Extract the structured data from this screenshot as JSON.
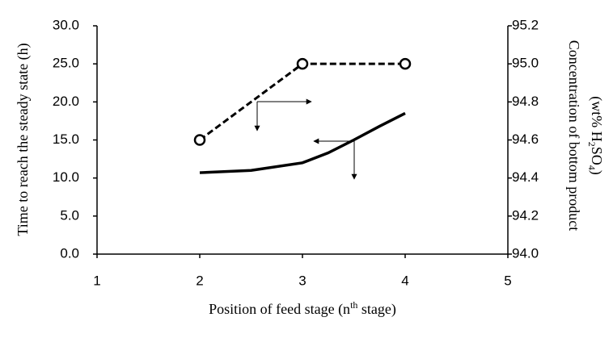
{
  "chart_data": {
    "type": "line",
    "xlabel": [
      "Position of feed stage (n",
      "th",
      " stage)"
    ],
    "ylabel": "Time to reach the steady state (h)",
    "y2label": [
      "Concentration of bottom product",
      "(wt% H",
      "2",
      "SO",
      "4",
      ")"
    ],
    "xlim": [
      1,
      5
    ],
    "xticks": [
      1,
      2,
      3,
      4,
      5
    ],
    "ylim": [
      0,
      30
    ],
    "yticks": [
      {
        "value": 0,
        "label": "0.0"
      },
      {
        "value": 5,
        "label": "5.0"
      },
      {
        "value": 10,
        "label": "10.0"
      },
      {
        "value": 15,
        "label": "15.0"
      },
      {
        "value": 20,
        "label": "20.0"
      },
      {
        "value": 25,
        "label": "25.0"
      },
      {
        "value": 30,
        "label": "30.0"
      }
    ],
    "y2lim": [
      94,
      95.2
    ],
    "y2ticks": [
      {
        "value": 94,
        "label": "94.0"
      },
      94.2,
      94.4,
      94.6,
      94.8,
      {
        "value": 95,
        "label": "95.0"
      },
      95.2
    ],
    "series": [
      {
        "color": "#000000",
        "style": "solid",
        "x": [
          2,
          2.5,
          3,
          3.25,
          3.5,
          3.75,
          4
        ],
        "values": [
          10.7,
          11.0,
          12.0,
          13.3,
          15.0,
          16.8,
          18.5
        ]
      },
      {
        "color": "#000000",
        "style": "dashed",
        "marker": "circle",
        "axis": "y2",
        "x": [
          2,
          3,
          4
        ],
        "values": [
          94.6,
          95.0,
          95.0
        ]
      }
    ]
  }
}
